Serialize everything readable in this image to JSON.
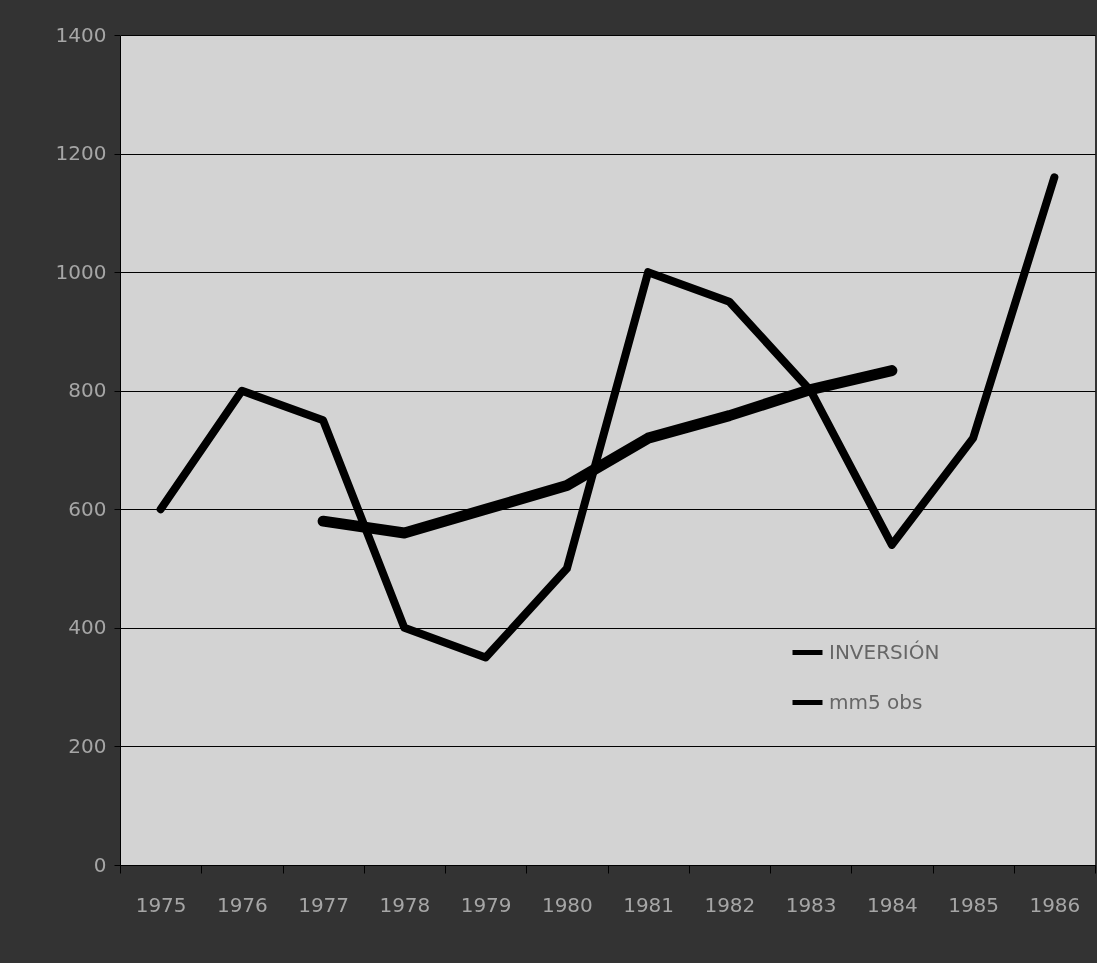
{
  "chart_data": {
    "type": "line",
    "categories": [
      "1975",
      "1976",
      "1977",
      "1978",
      "1979",
      "1980",
      "1981",
      "1982",
      "1983",
      "1984",
      "1985",
      "1986"
    ],
    "series": [
      {
        "name": "INVERSIÓN",
        "color": "#000000",
        "values": [
          600,
          800,
          750,
          400,
          350,
          500,
          1000,
          950,
          800,
          540,
          720,
          1160
        ]
      },
      {
        "name": "mm5 obs",
        "color": "#000000",
        "values": [
          null,
          null,
          580,
          560,
          600,
          640,
          720,
          758,
          802,
          834,
          null,
          null
        ]
      }
    ],
    "ylim": [
      0,
      1400
    ],
    "yticks": [
      0,
      200,
      400,
      600,
      800,
      1000,
      1200,
      1400
    ],
    "grid": "y",
    "legend": "bottom right",
    "marker": "none",
    "line_style": "solid"
  }
}
